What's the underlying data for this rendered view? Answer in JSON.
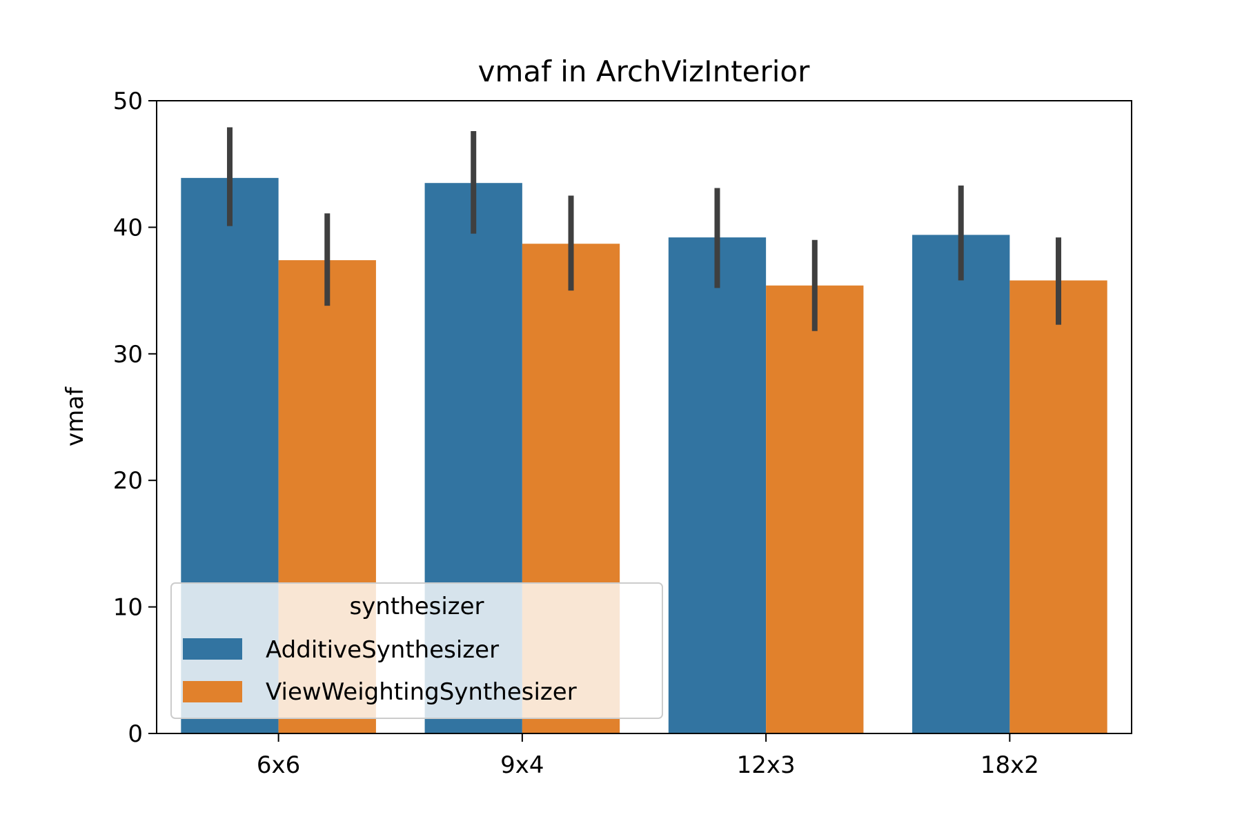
{
  "chart_data": {
    "type": "bar",
    "title": "vmaf in ArchVizInterior",
    "xlabel": "",
    "ylabel": "vmaf",
    "categories": [
      "6x6",
      "9x4",
      "12x3",
      "18x2"
    ],
    "ylim": [
      0,
      50
    ],
    "yticks": [
      0,
      10,
      20,
      30,
      40,
      50
    ],
    "grid": false,
    "legend": {
      "title": "synthesizer",
      "placement": "lower-left"
    },
    "series": [
      {
        "name": "AdditiveSynthesizer",
        "color": "#3274a1",
        "values": [
          43.9,
          43.5,
          39.2,
          39.4
        ],
        "error_low": [
          40.1,
          39.5,
          35.2,
          35.8
        ],
        "error_high": [
          47.9,
          47.6,
          43.1,
          43.3
        ]
      },
      {
        "name": "ViewWeightingSynthesizer",
        "color": "#e1812c",
        "values": [
          37.4,
          38.7,
          35.4,
          35.8
        ],
        "error_low": [
          33.8,
          35.0,
          31.8,
          32.3
        ],
        "error_high": [
          41.1,
          42.5,
          39.0,
          39.2
        ]
      }
    ],
    "error_bar_color": "#3f3f3f"
  }
}
